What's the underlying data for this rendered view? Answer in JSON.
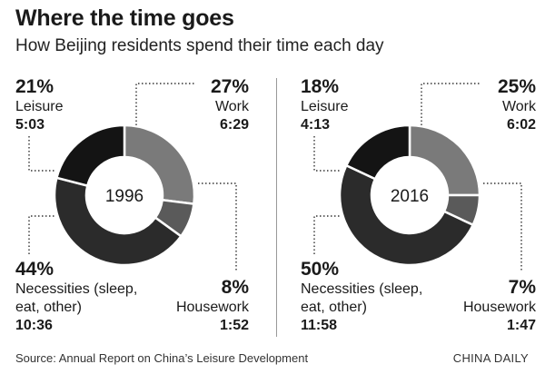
{
  "header": {
    "title": "Where the time goes",
    "subtitle": "How Beijing residents spend their time each day"
  },
  "colors": {
    "work": "#7a7a7a",
    "housework": "#5a5a5a",
    "necessities": "#2b2b2b",
    "leisure": "#141414"
  },
  "chart_data": [
    {
      "type": "pie",
      "center_label": "1996",
      "categories": [
        "Work",
        "Housework",
        "Necessities (sleep, eat, other)",
        "Leisure"
      ],
      "values": [
        27,
        8,
        44,
        21
      ],
      "labels": {
        "leisure": {
          "pct": "21%",
          "name": "Leisure",
          "time": "5:03"
        },
        "work": {
          "pct": "27%",
          "name": "Work",
          "time": "6:29"
        },
        "necessities": {
          "pct": "44%",
          "name1": "Necessities (sleep,",
          "name2": "eat, other)",
          "time": "10:36"
        },
        "housework": {
          "pct": "8%",
          "name": "Housework",
          "time": "1:52"
        }
      }
    },
    {
      "type": "pie",
      "center_label": "2016",
      "categories": [
        "Work",
        "Housework",
        "Necessities (sleep, eat, other)",
        "Leisure"
      ],
      "values": [
        25,
        7,
        50,
        18
      ],
      "labels": {
        "leisure": {
          "pct": "18%",
          "name": "Leisure",
          "time": "4:13"
        },
        "work": {
          "pct": "25%",
          "name": "Work",
          "time": "6:02"
        },
        "necessities": {
          "pct": "50%",
          "name1": "Necessities (sleep,",
          "name2": "eat, other)",
          "time": "11:58"
        },
        "housework": {
          "pct": "7%",
          "name": "Housework",
          "time": "1:47"
        }
      }
    }
  ],
  "footer": {
    "source": "Source: Annual Report on China’s Leisure Development",
    "brand": "CHINA DAILY"
  }
}
